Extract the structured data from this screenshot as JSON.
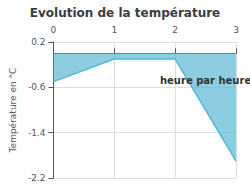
{
  "chart_data": {
    "type": "area",
    "title": "Evolution de la température",
    "ylabel": "Température en °C",
    "x": [
      0,
      1,
      2,
      3
    ],
    "values": [
      -0.5,
      -0.1,
      -0.1,
      -1.9
    ],
    "color": "#5bb8d4",
    "xlim": [
      0,
      3
    ],
    "xticks": [
      0,
      1,
      2,
      3
    ],
    "ylim": [
      -2.2,
      0.2
    ],
    "yticks": [
      0.2,
      -0.6,
      -1.4,
      -2.2
    ],
    "grid": true,
    "annotations": [
      {
        "text": "heure par heure",
        "x": 2.5,
        "y": -0.35
      }
    ]
  }
}
